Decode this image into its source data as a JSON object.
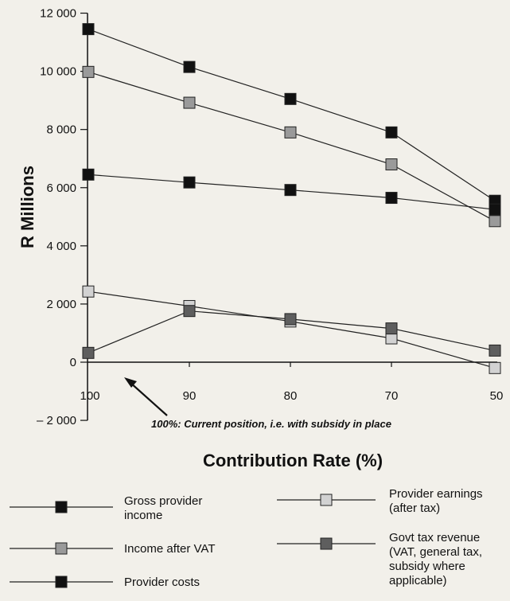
{
  "chart_data": {
    "type": "line",
    "title": "",
    "xlabel": "Contribution Rate (%)",
    "ylabel": "R Millions",
    "categories": [
      "100",
      "90",
      "80",
      "70",
      "50"
    ],
    "ylim": [
      -2000,
      12000
    ],
    "y_ticks": [
      "12 000",
      "10 000",
      "8 000",
      "6 000",
      "4 000",
      "2 000",
      "0",
      "– 2 000"
    ],
    "y_tick_values": [
      12000,
      10000,
      8000,
      6000,
      4000,
      2000,
      0,
      -2000
    ],
    "grid": false,
    "legend_position": "bottom",
    "annotation": "100%: Current position, i.e. with subsidy in place",
    "series": [
      {
        "name": "Gross provider income",
        "values": [
          11450,
          10150,
          9050,
          7900,
          5550
        ],
        "color": "#111111",
        "legend_lines": [
          "Gross provider",
          "income"
        ]
      },
      {
        "name": "Income after VAT",
        "values": [
          9980,
          8920,
          7900,
          6800,
          4850
        ],
        "color": "#9a9a9a",
        "legend_lines": [
          "Income after VAT"
        ]
      },
      {
        "name": "Provider costs",
        "values": [
          6450,
          6180,
          5920,
          5650,
          5250
        ],
        "color": "#111111",
        "legend_lines": [
          "Provider costs"
        ]
      },
      {
        "name": "Provider earnings (after tax)",
        "values": [
          2430,
          1930,
          1400,
          820,
          -200
        ],
        "color": "#d2d2d2",
        "legend_lines": [
          "Provider earnings",
          "(after tax)"
        ]
      },
      {
        "name": "Govt tax revenue (VAT, general tax, subsidy where applicable)",
        "values": [
          320,
          1760,
          1480,
          1160,
          400
        ],
        "color": "#5e5e5e",
        "legend_lines": [
          "Govt tax revenue",
          "(VAT, general tax,",
          "subsidy where",
          "applicable)"
        ]
      }
    ]
  }
}
